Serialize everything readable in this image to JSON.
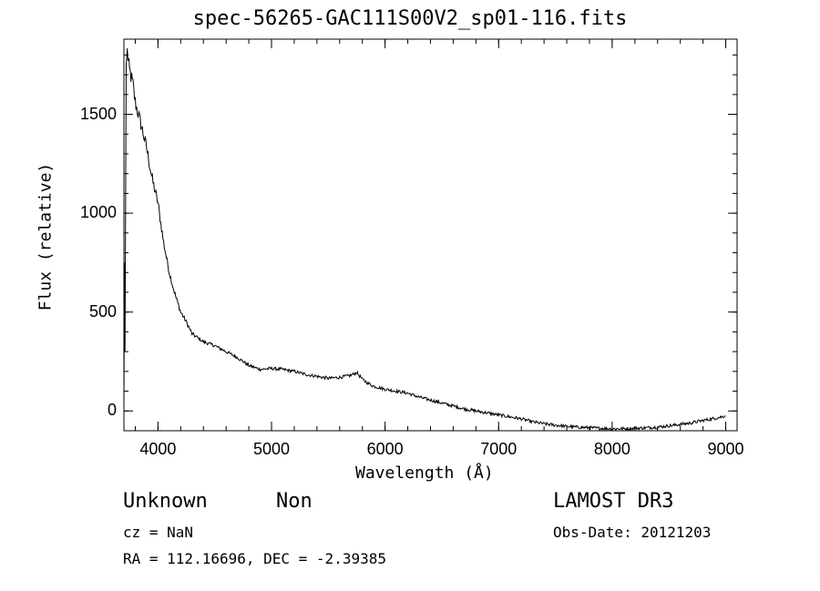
{
  "chart_data": {
    "type": "line",
    "title": "spec-56265-GAC111S00V2_sp01-116.fits",
    "xlabel": "Wavelength (Å)",
    "ylabel": "Flux (relative)",
    "xlim": [
      3700,
      9100
    ],
    "ylim": [
      -100,
      1880
    ],
    "x_ticks": [
      4000,
      5000,
      6000,
      7000,
      8000,
      9000
    ],
    "y_ticks": [
      0,
      500,
      1000,
      1500
    ],
    "x_tick_labels": [
      "4000",
      "5000",
      "6000",
      "7000",
      "8000",
      "9000"
    ],
    "y_tick_labels": [
      "0",
      "500",
      "1000",
      "1500"
    ],
    "series": [
      {
        "name": "flux",
        "x": [
          3700,
          3705,
          3710,
          3715,
          3720,
          3730,
          3740,
          3750,
          3780,
          3800,
          3850,
          3900,
          3950,
          4000,
          4050,
          4100,
          4150,
          4200,
          4250,
          4300,
          4350,
          4400,
          4500,
          4600,
          4700,
          4800,
          4900,
          5000,
          5100,
          5200,
          5300,
          5400,
          5500,
          5600,
          5700,
          5750,
          5800,
          5850,
          5900,
          6000,
          6100,
          6200,
          6300,
          6400,
          6500,
          6600,
          6700,
          6800,
          6900,
          7000,
          7100,
          7200,
          7300,
          7400,
          7500,
          7600,
          7700,
          7800,
          7900,
          8000,
          8100,
          8200,
          8300,
          8400,
          8500,
          8600,
          8700,
          8800,
          8900,
          9000
        ],
        "y": [
          20,
          750,
          300,
          1100,
          1750,
          1820,
          1760,
          1720,
          1650,
          1560,
          1450,
          1330,
          1170,
          1050,
          850,
          700,
          590,
          500,
          450,
          390,
          370,
          350,
          330,
          300,
          270,
          230,
          210,
          215,
          210,
          200,
          185,
          175,
          165,
          170,
          180,
          195,
          160,
          140,
          125,
          110,
          100,
          90,
          70,
          55,
          40,
          25,
          10,
          0,
          -10,
          -20,
          -30,
          -40,
          -55,
          -65,
          -72,
          -78,
          -82,
          -85,
          -88,
          -90,
          -90,
          -88,
          -85,
          -82,
          -75,
          -68,
          -60,
          -48,
          -38,
          -25
        ]
      }
    ]
  },
  "footer": {
    "object_class": "Unknown",
    "object_subclass": "Non",
    "survey": "LAMOST DR3",
    "redshift": "cz = NaN",
    "obs_date": "Obs-Date: 20121203",
    "coordinates": "RA = 112.16696, DEC =  -2.39385"
  }
}
